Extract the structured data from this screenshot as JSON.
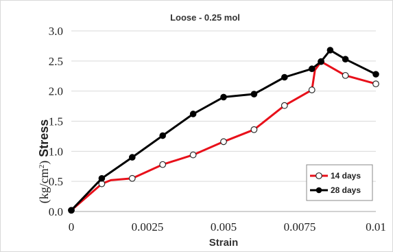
{
  "chart_data": {
    "type": "line",
    "title": "Loose - 0.25 mol",
    "xlabel": "Strain",
    "ylabel_unit": "(kg/cm",
    "ylabel_sup": "2",
    "ylabel_close": ")",
    "ylabel_text": "Stress",
    "xlim": [
      0,
      0.01
    ],
    "ylim": [
      0,
      3.0
    ],
    "xticks": [
      0,
      0.0025,
      0.005,
      0.0075,
      0.01
    ],
    "xtick_labels": [
      "0",
      "0.0025",
      "0.005",
      "0.0075",
      "0.01"
    ],
    "yticks": [
      0,
      0.5,
      1.0,
      1.5,
      2.0,
      2.5,
      3.0
    ],
    "ytick_labels": [
      "0.0",
      "0.5",
      "1.0",
      "1.5",
      "2.0",
      "2.5",
      "3.0"
    ],
    "grid": "horizontal",
    "legend_position": "bottom-right",
    "series": [
      {
        "name": "14 days",
        "color": "#e8101a",
        "marker": "hollow-circle",
        "markers": [
          [
            0,
            0.02
          ],
          [
            0.001,
            0.46
          ],
          [
            0.002,
            0.55
          ],
          [
            0.003,
            0.78
          ],
          [
            0.004,
            0.94
          ],
          [
            0.005,
            1.16
          ],
          [
            0.006,
            1.36
          ],
          [
            0.007,
            1.76
          ],
          [
            0.0079,
            2.02
          ],
          [
            0.0082,
            2.49
          ],
          [
            0.009,
            2.26
          ],
          [
            0.01,
            2.12
          ]
        ],
        "path": [
          [
            0,
            0.02
          ],
          [
            0.001,
            0.46
          ],
          [
            0.0013,
            0.52
          ],
          [
            0.002,
            0.55
          ],
          [
            0.003,
            0.78
          ],
          [
            0.004,
            0.94
          ],
          [
            0.005,
            1.16
          ],
          [
            0.006,
            1.36
          ],
          [
            0.007,
            1.76
          ],
          [
            0.0079,
            2.02
          ],
          [
            0.008,
            2.35
          ],
          [
            0.0082,
            2.49
          ],
          [
            0.009,
            2.26
          ],
          [
            0.01,
            2.12
          ]
        ]
      },
      {
        "name": "28 days",
        "color": "#000000",
        "marker": "filled-circle",
        "markers": [
          [
            0,
            0.02
          ],
          [
            0.001,
            0.55
          ],
          [
            0.002,
            0.9
          ],
          [
            0.003,
            1.26
          ],
          [
            0.004,
            1.62
          ],
          [
            0.005,
            1.9
          ],
          [
            0.006,
            1.95
          ],
          [
            0.007,
            2.23
          ],
          [
            0.0079,
            2.37
          ],
          [
            0.0082,
            2.49
          ],
          [
            0.0085,
            2.68
          ],
          [
            0.009,
            2.53
          ],
          [
            0.01,
            2.28
          ]
        ],
        "path": [
          [
            0,
            0.02
          ],
          [
            0.001,
            0.55
          ],
          [
            0.002,
            0.9
          ],
          [
            0.003,
            1.26
          ],
          [
            0.004,
            1.62
          ],
          [
            0.005,
            1.9
          ],
          [
            0.006,
            1.95
          ],
          [
            0.007,
            2.23
          ],
          [
            0.0079,
            2.37
          ],
          [
            0.0082,
            2.49
          ],
          [
            0.0085,
            2.68
          ],
          [
            0.009,
            2.53
          ],
          [
            0.01,
            2.28
          ]
        ]
      }
    ]
  }
}
